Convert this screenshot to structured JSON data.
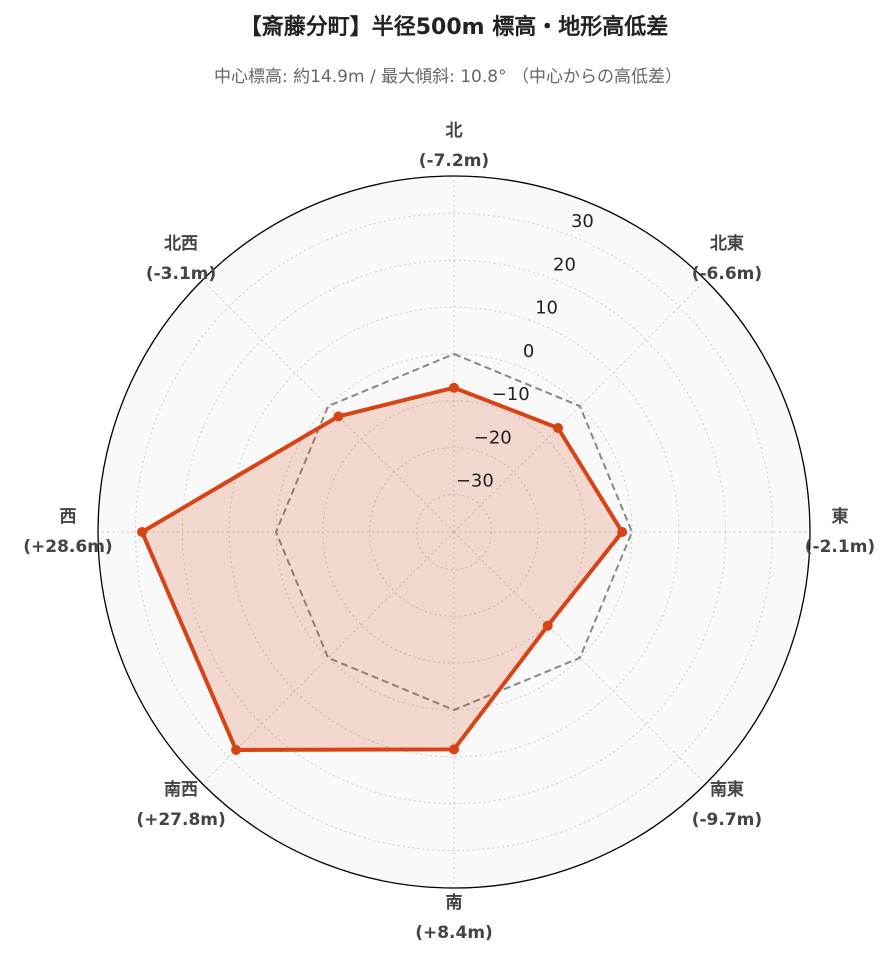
{
  "chart_data": {
    "type": "radar",
    "title": "【斎藤分町】半径500m 標高・地形高低差",
    "subtitle": "中心標高: 約14.9m / 最大傾斜: 10.8° （中心からの高低差）",
    "categories": [
      "北",
      "北東",
      "東",
      "南東",
      "南",
      "南西",
      "西",
      "北西"
    ],
    "values": [
      -7.2,
      -6.6,
      -2.1,
      -9.7,
      8.4,
      27.8,
      28.6,
      -3.1
    ],
    "value_labels": [
      "(-7.2m)",
      "(-6.6m)",
      "(-2.1m)",
      "(-9.7m)",
      "(+8.4m)",
      "(+27.8m)",
      "(+28.6m)",
      "(-3.1m)"
    ],
    "color": "#d84315",
    "reference_value": 0,
    "ylim": [
      -38,
      38
    ],
    "yticks": [
      {
        "value": -30,
        "label": "−30"
      },
      {
        "value": -20,
        "label": "−20"
      },
      {
        "value": -10,
        "label": "−10"
      },
      0,
      10,
      20,
      30
    ],
    "grid": true
  }
}
